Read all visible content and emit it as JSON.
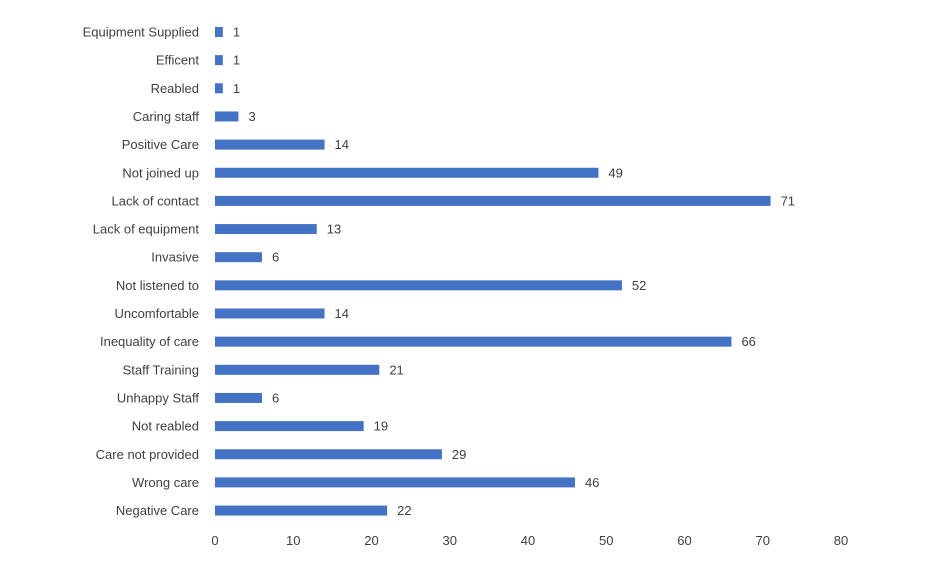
{
  "chart_data": {
    "type": "bar",
    "orientation": "horizontal",
    "categories": [
      "Equipment Supplied",
      "Efficent",
      "Reabled",
      "Caring staff",
      "Positive Care",
      "Not joined up",
      "Lack of contact",
      "Lack of equipment",
      "Invasive",
      "Not listened to",
      "Uncomfortable",
      "Inequality of care",
      "Staff Training",
      "Unhappy Staff",
      "Not reabled",
      "Care not provided",
      "Wrong care",
      "Negative Care"
    ],
    "values": [
      1,
      1,
      1,
      3,
      14,
      49,
      71,
      13,
      6,
      52,
      14,
      66,
      21,
      6,
      19,
      29,
      46,
      22
    ],
    "xlim": [
      0,
      80
    ],
    "xticks": [
      0,
      10,
      20,
      30,
      40,
      50,
      60,
      70,
      80
    ],
    "grid": false,
    "data_labels": true,
    "bar_color": "#4472C4"
  }
}
